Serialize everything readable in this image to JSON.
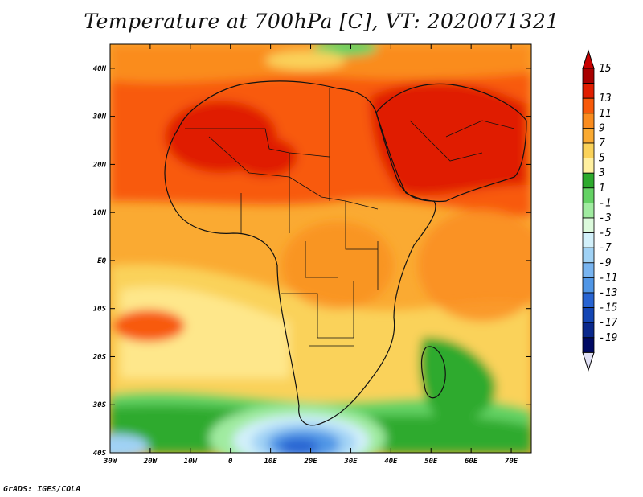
{
  "title": "Temperature at 700hPa [C], VT: 2020071321",
  "credit": "GrADS: IGES/COLA",
  "map": {
    "lon_range": [
      -30,
      75
    ],
    "lat_range": [
      -40,
      45
    ],
    "x_ticks": [
      "30W",
      "20W",
      "10W",
      "0",
      "10E",
      "20E",
      "30E",
      "40E",
      "50E",
      "60E",
      "70E"
    ],
    "y_ticks": [
      "40S",
      "30S",
      "20S",
      "10S",
      "EQ",
      "10N",
      "20N",
      "30N",
      "40N"
    ]
  },
  "colorbar": {
    "labels": [
      "15",
      "13",
      "11",
      "9",
      "7",
      "5",
      "3",
      "1",
      "-1",
      "-3",
      "-5",
      "-7",
      "-9",
      "-11",
      "-13",
      "-15",
      "-17",
      "-19"
    ],
    "colors": [
      "#a80000",
      "#e01e00",
      "#f85a0a",
      "#fa8c1e",
      "#faaa32",
      "#fad25a",
      "#fff0a0",
      "#2daa2d",
      "#64d264",
      "#a0eba0",
      "#dcfadc",
      "#d2f0fa",
      "#a0d2f5",
      "#78b4f0",
      "#5096e6",
      "#2864d2",
      "#1446b4",
      "#0a288c",
      "#000a64"
    ],
    "top_color": "#c80000",
    "bottom_color": "#e1e1f5"
  }
}
